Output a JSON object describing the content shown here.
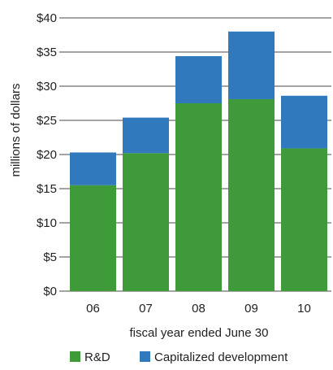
{
  "chart_data": {
    "type": "bar",
    "stacked": true,
    "categories": [
      "06",
      "07",
      "08",
      "09",
      "10"
    ],
    "series": [
      {
        "name": "R&D",
        "color": "#3f9a3a",
        "values": [
          15.5,
          20.2,
          27.5,
          28.1,
          20.9
        ]
      },
      {
        "name": "Capitalized development",
        "color": "#2f79bc",
        "values": [
          4.8,
          5.2,
          6.9,
          9.9,
          7.7
        ]
      }
    ],
    "totals": [
      20.3,
      25.4,
      34.4,
      38.0,
      28.6
    ],
    "xlabel": "fiscal year ended June 30",
    "ylabel": "millions of dollars",
    "ylim": [
      0,
      40
    ],
    "yticks": [
      0,
      5,
      10,
      15,
      20,
      25,
      30,
      35,
      40
    ],
    "ytick_labels": [
      "$0",
      "$5",
      "$10",
      "$15",
      "$20",
      "$25",
      "$30",
      "$35",
      "$40"
    ],
    "grid": true,
    "legend_position": "bottom"
  }
}
